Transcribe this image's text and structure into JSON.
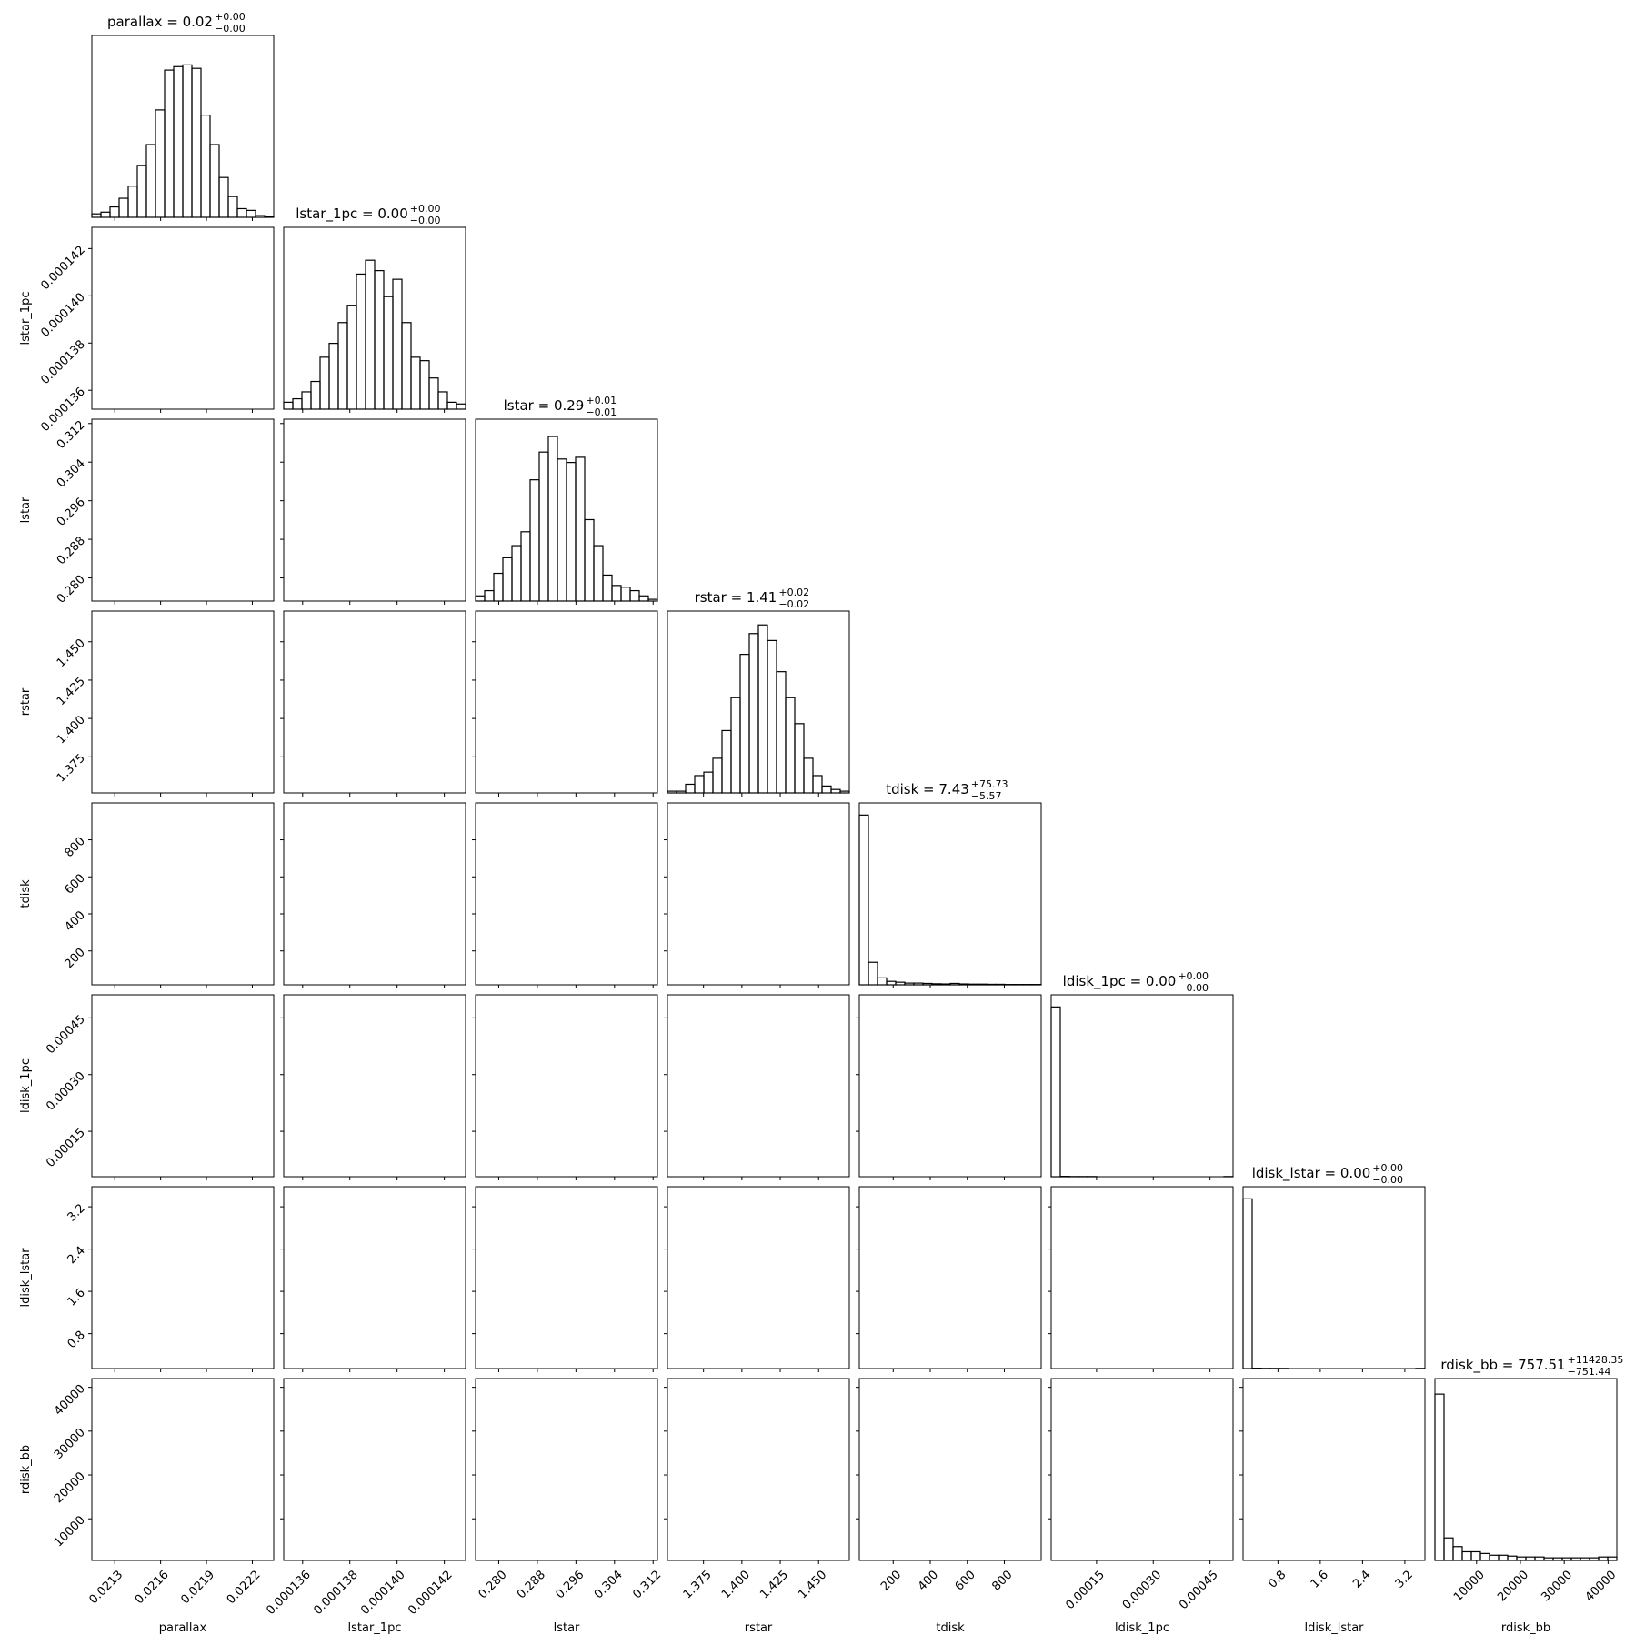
{
  "chart_data": {
    "type": "corner",
    "parameters": [
      {
        "name": "parallax",
        "title": "parallax = 0.02",
        "plus": "+0.00",
        "minus": "−0.00",
        "lim": [
          0.02115,
          0.02234
        ],
        "ticks": [
          0.0213,
          0.0216,
          0.0219,
          0.0222
        ],
        "hist": [
          0.02,
          0.03,
          0.06,
          0.11,
          0.18,
          0.3,
          0.42,
          0.62,
          0.85,
          0.87,
          0.88,
          0.86,
          0.59,
          0.42,
          0.23,
          0.12,
          0.05,
          0.04,
          0.01,
          0.005
        ]
      },
      {
        "name": "lstar_1pc",
        "title": "lstar_1pc = 0.00",
        "plus": "+0.00",
        "minus": "−0.00",
        "lim": [
          0.0001352,
          0.0001429
        ],
        "ticks": [
          0.000136,
          0.000138,
          {
            "value": 0.00014,
            "label": "0.000140"
          },
          0.000142
        ],
        "hist": [
          0.04,
          0.06,
          0.1,
          0.16,
          0.3,
          0.38,
          0.5,
          0.6,
          0.78,
          0.86,
          0.8,
          0.65,
          0.75,
          0.5,
          0.3,
          0.28,
          0.18,
          0.1,
          0.04,
          0.03
        ]
      },
      {
        "name": "lstar",
        "title": "lstar = 0.29",
        "plus": "+0.01",
        "minus": "−0.01",
        "lim": [
          0.2752,
          0.3129
        ],
        "ticks": [
          {
            "value": 0.28,
            "label": "0.280"
          },
          0.288,
          0.296,
          0.304,
          0.312
        ],
        "hist": [
          0.03,
          0.06,
          0.16,
          0.25,
          0.32,
          0.4,
          0.7,
          0.86,
          0.95,
          0.82,
          0.8,
          0.83,
          0.47,
          0.32,
          0.15,
          0.09,
          0.08,
          0.06,
          0.03,
          0.01
        ]
      },
      {
        "name": "rstar",
        "title": "rstar = 1.41",
        "plus": "+0.02",
        "minus": "−0.02",
        "lim": [
          1.3515,
          1.47
        ],
        "ticks": [
          1.375,
          {
            "value": 1.4,
            "label": "1.400"
          },
          1.425,
          {
            "value": 1.45,
            "label": "1.450"
          }
        ],
        "hist": [
          0.01,
          0.01,
          0.05,
          0.1,
          0.12,
          0.2,
          0.36,
          0.55,
          0.8,
          0.92,
          0.97,
          0.88,
          0.7,
          0.55,
          0.4,
          0.2,
          0.1,
          0.04,
          0.02,
          0.01
        ]
      },
      {
        "name": "tdisk",
        "title": "tdisk = 7.43",
        "plus": "+75.73",
        "minus": "−5.57",
        "lim": [
          17,
          999
        ],
        "ticks": [
          200,
          400,
          600,
          800
        ],
        "hist": [
          0.98,
          0.13,
          0.04,
          0.02,
          0.015,
          0.01,
          0.01,
          0.008,
          0.006,
          0.005,
          0.008,
          0.005,
          0.004,
          0.004,
          0.003,
          0.003,
          0.002,
          0.002,
          0.002,
          0.002
        ]
      },
      {
        "name": "ldisk_1pc",
        "title": "ldisk_1pc = 0.00",
        "plus": "+0.00",
        "minus": "−0.00",
        "lim": [
          3e-05,
          0.000511
        ],
        "ticks": [
          0.00015,
          {
            "value": 0.0003,
            "label": "0.00030"
          },
          0.00045
        ],
        "hist": [
          0.98,
          0.002,
          0.001,
          0.001,
          0.001,
          0,
          0,
          0,
          0,
          0,
          0,
          0,
          0,
          0,
          0,
          0,
          0,
          0,
          0,
          0.001
        ]
      },
      {
        "name": "ldisk_lstar",
        "title": "ldisk_lstar = 0.00",
        "plus": "+0.00",
        "minus": "−0.00",
        "lim": [
          0.14,
          3.58
        ],
        "ticks": [
          0.8,
          1.6,
          2.4,
          3.2
        ],
        "hist": [
          0.98,
          0.002,
          0.001,
          0.001,
          0.001,
          0,
          0,
          0,
          0,
          0,
          0,
          0,
          0,
          0,
          0,
          0,
          0,
          0,
          0,
          0.001
        ]
      },
      {
        "name": "rdisk_bb",
        "title": "rdisk_bb = 757.51",
        "plus": "+11428.35",
        "minus": "−751.44",
        "lim": [
          500,
          42000
        ],
        "ticks": [
          10000,
          20000,
          30000,
          40000
        ],
        "hist": [
          0.96,
          0.13,
          0.08,
          0.05,
          0.05,
          0.04,
          0.03,
          0.03,
          0.025,
          0.02,
          0.02,
          0.02,
          0.015,
          0.015,
          0.015,
          0.015,
          0.015,
          0.015,
          0.02,
          0.02
        ]
      }
    ]
  }
}
